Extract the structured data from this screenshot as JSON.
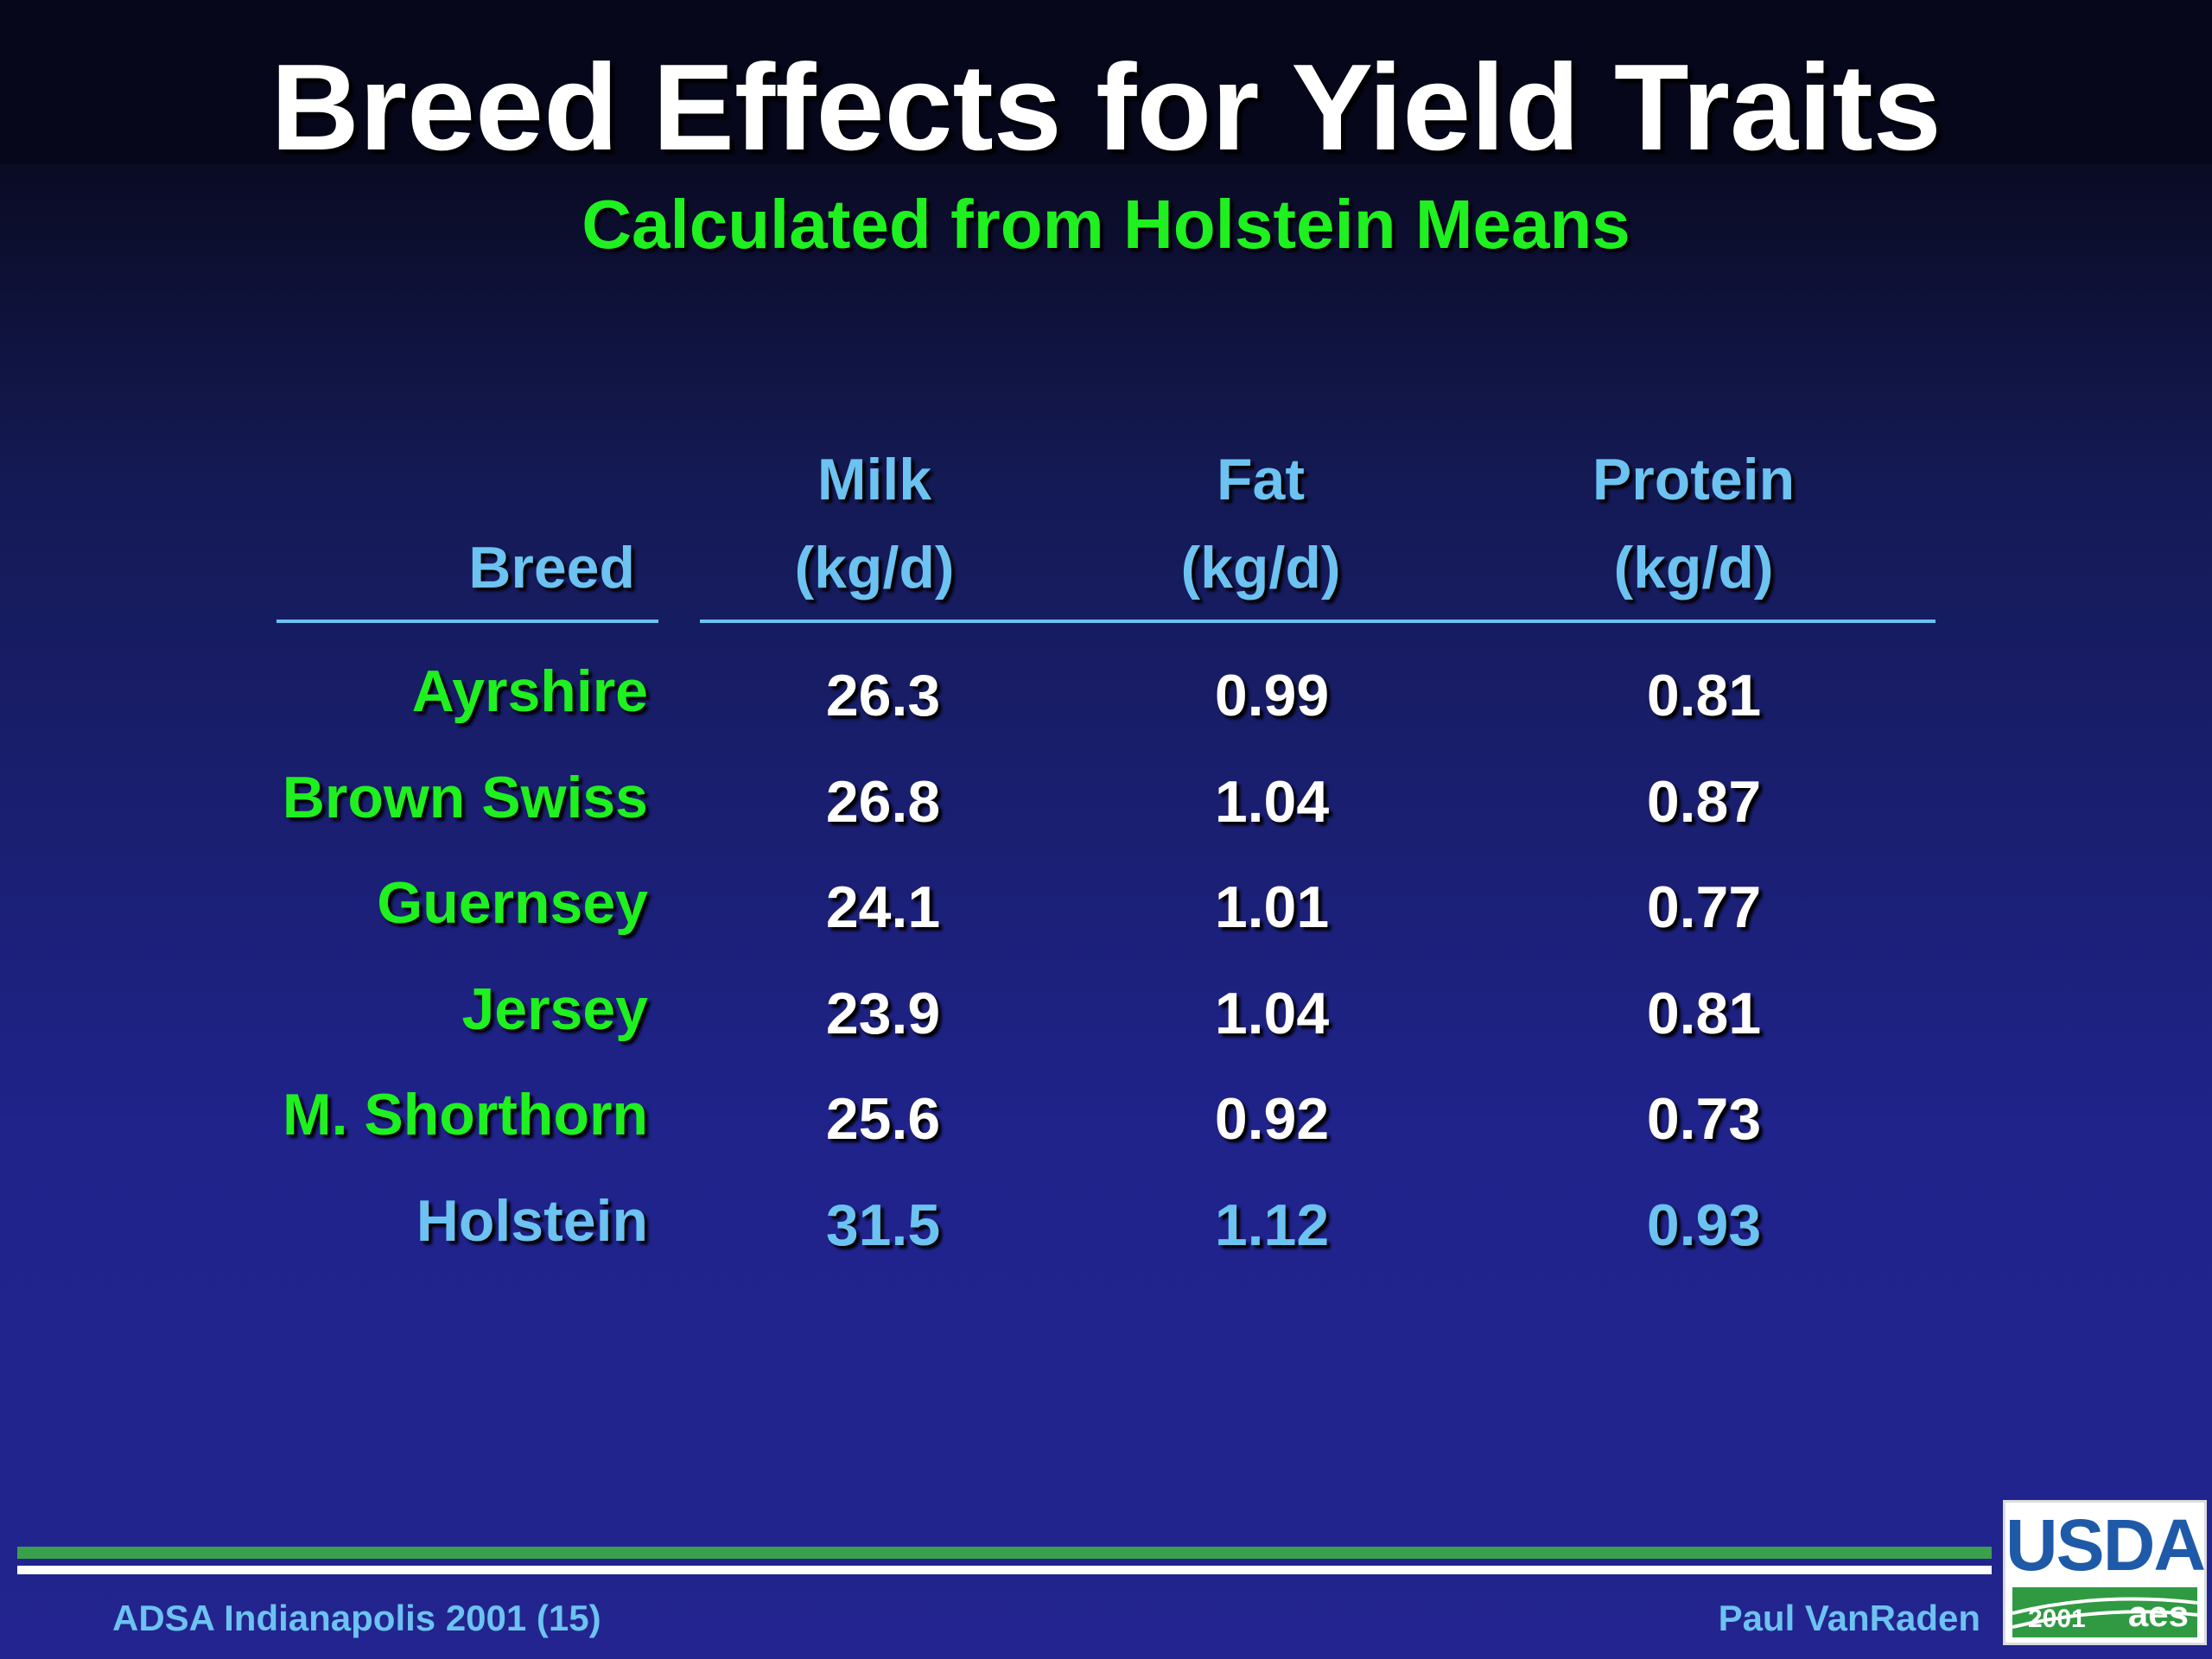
{
  "title": "Breed Effects for Yield Traits",
  "subtitle": "Calculated from Holstein Means",
  "table": {
    "headers": {
      "breed": "Breed",
      "milk_line1": "Milk",
      "milk_line2": "(kg/d)",
      "fat_line1": "Fat",
      "fat_line2": "(kg/d)",
      "protein_line1": "Protein",
      "protein_line2": "(kg/d)"
    },
    "rows": [
      {
        "breed": "Ayrshire",
        "milk": "26.3",
        "fat": "0.99",
        "protein": "0.81"
      },
      {
        "breed": "Brown Swiss",
        "milk": "26.8",
        "fat": "1.04",
        "protein": "0.87"
      },
      {
        "breed": "Guernsey",
        "milk": "24.1",
        "fat": "1.01",
        "protein": "0.77"
      },
      {
        "breed": "Jersey",
        "milk": "23.9",
        "fat": "1.04",
        "protein": "0.81"
      },
      {
        "breed": "M. Shorthorn",
        "milk": "25.6",
        "fat": "0.92",
        "protein": "0.73"
      },
      {
        "breed": "Holstein",
        "milk": "31.5",
        "fat": "1.12",
        "protein": "0.93"
      }
    ]
  },
  "footer": {
    "left": "ADSA Indianapolis 2001 (15)",
    "right": "Paul VanRaden"
  },
  "logo": {
    "text": "USDA",
    "year": "2001",
    "mark": "aes"
  },
  "colors": {
    "title": "#ffffff",
    "subtitle": "#1ff01f",
    "header": "#6cc2f0",
    "breed": "#1ff01f",
    "value": "#ffffff",
    "holstein": "#6cc2f0",
    "footer_green": "#3aa04c"
  }
}
